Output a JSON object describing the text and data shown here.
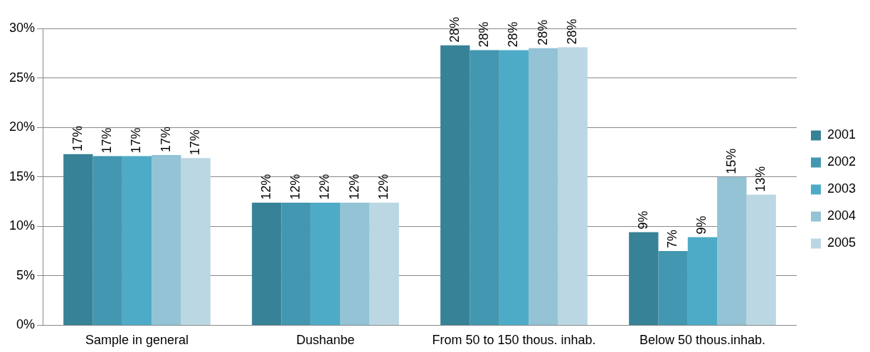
{
  "chart_data": {
    "type": "bar",
    "categories": [
      "Sample in general",
      "Dushanbe",
      "From 50 to 150 thous. inhab.",
      "Below 50 thous.inhab."
    ],
    "series": [
      {
        "name": "2001",
        "color": "#378296",
        "values": [
          17.3,
          12.4,
          28.3,
          9.4
        ],
        "value_labels": [
          "17%",
          "12%",
          "28%",
          "9%"
        ]
      },
      {
        "name": "2002",
        "color": "#4397b0",
        "values": [
          17.1,
          12.4,
          27.8,
          7.5
        ],
        "value_labels": [
          "17%",
          "12%",
          "28%",
          "7%"
        ]
      },
      {
        "name": "2003",
        "color": "#4eabc7",
        "values": [
          17.1,
          12.4,
          27.8,
          8.9
        ],
        "value_labels": [
          "17%",
          "12%",
          "28%",
          "9%"
        ]
      },
      {
        "name": "2004",
        "color": "#93c3d5",
        "values": [
          17.2,
          12.4,
          28.0,
          15.0
        ],
        "value_labels": [
          "17%",
          "12%",
          "28%",
          "15%"
        ]
      },
      {
        "name": "2005",
        "color": "#bbd7e3",
        "values": [
          16.9,
          12.4,
          28.1,
          13.2
        ],
        "value_labels": [
          "17%",
          "12%",
          "28%",
          "13%"
        ]
      }
    ],
    "ylim": [
      0,
      30
    ],
    "yticks": [
      {
        "value": 0,
        "label": "0%"
      },
      {
        "value": 5,
        "label": "5%"
      },
      {
        "value": 10,
        "label": "10%"
      },
      {
        "value": 15,
        "label": "15%"
      },
      {
        "value": 20,
        "label": "20%"
      },
      {
        "value": 25,
        "label": "25%"
      },
      {
        "value": 30,
        "label": "30%"
      }
    ],
    "grid": "y",
    "legend": "right"
  }
}
